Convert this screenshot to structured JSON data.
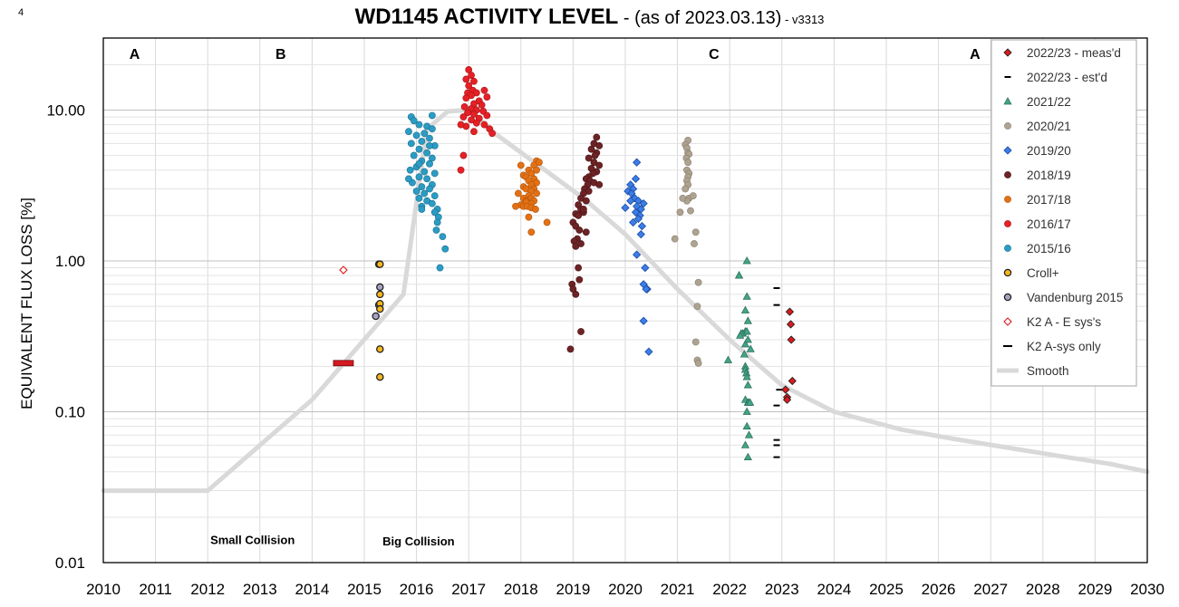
{
  "page_number": "4",
  "title": {
    "main": "WD1145 ACTIVITY LEVEL",
    "dash": " - ",
    "subtitle": "(as of 2023.03.13)",
    "version": " - v3313"
  },
  "chart_data": {
    "type": "scatter",
    "title": "WD1145 ACTIVITY LEVEL - (as of 2023.03.13) - v3313",
    "xlabel": "",
    "ylabel": "EQUIVALENT FLUX LOSS [%]",
    "xlim": [
      2010,
      2030
    ],
    "ylim": [
      0.01,
      30
    ],
    "yscale": "log",
    "x_ticks": [
      "2010",
      "2011",
      "2012",
      "2013",
      "2014",
      "2015",
      "2016",
      "2017",
      "2018",
      "2019",
      "2020",
      "2021",
      "2022",
      "2023",
      "2024",
      "2025",
      "2026",
      "2027",
      "2028",
      "2029",
      "2030"
    ],
    "y_ticks": [
      {
        "value": 0.01,
        "label": "0.01"
      },
      {
        "value": 0.1,
        "label": "0.10"
      },
      {
        "value": 1,
        "label": "1.00"
      },
      {
        "value": 10,
        "label": "10.00"
      }
    ],
    "grid": true,
    "legend_position": "top-right",
    "era_labels": [
      {
        "text": "A",
        "x": 2010.6
      },
      {
        "text": "B",
        "x": 2013.4
      },
      {
        "text": "C",
        "x": 2021.7
      },
      {
        "text": "A",
        "x": 2026.7
      }
    ],
    "annotations": [
      {
        "text": "Small Collision",
        "x": 2012.05,
        "y": 0.0133
      },
      {
        "text": "Big Collision",
        "x": 2015.35,
        "y": 0.013
      }
    ],
    "series": [
      {
        "name": "2022/23 - meas'd",
        "marker": "diamond",
        "color": "#e0191b",
        "edge": "#222222",
        "x": [
          2023.15,
          2023.17,
          2023.18,
          2023.2,
          2023.07,
          2023.1,
          2023.1
        ],
        "y": [
          0.46,
          0.38,
          0.3,
          0.16,
          0.14,
          0.125,
          0.12
        ]
      },
      {
        "name": "2022/23 - est'd",
        "marker": "dash",
        "color": "#000000",
        "x": [
          2022.9,
          2022.9,
          2022.95,
          2022.9,
          2022.9,
          2022.9,
          2022.9
        ],
        "y": [
          0.66,
          0.51,
          0.14,
          0.11,
          0.065,
          0.06,
          0.05
        ]
      },
      {
        "name": "2021/22",
        "marker": "triangle",
        "color": "#43a386",
        "edge": "#2a6b58",
        "x": [
          2022.18,
          2022.33,
          2022.18,
          2022.33,
          2022.3,
          2022.35,
          2022.3,
          2022.33,
          2022.25,
          2022.22,
          2022.3,
          2022.35,
          2022.2,
          2022.28,
          2022.4,
          2022.3,
          2022.3,
          2022.32,
          2022.33,
          2022.35,
          2022.3,
          2022.35,
          2021.97,
          2022.36,
          2022.39,
          2022.33,
          2022.37,
          2022.3,
          2022.35,
          2022.33
        ],
        "y": [
          0.8,
          1.0,
          0.8,
          0.58,
          0.47,
          0.4,
          0.34,
          0.34,
          0.33,
          0.33,
          0.28,
          0.3,
          0.32,
          0.24,
          0.26,
          0.2,
          0.19,
          0.18,
          0.17,
          0.15,
          0.12,
          0.115,
          0.22,
          0.115,
          0.115,
          0.08,
          0.07,
          0.06,
          0.05,
          0.1
        ]
      },
      {
        "name": "2020/21",
        "marker": "circle",
        "color": "#aea391",
        "edge": "#877c69",
        "x": [
          2021.2,
          2021.15,
          2021.18,
          2021.2,
          2021.22,
          2021.17,
          2021.2,
          2021.18,
          2021.22,
          2021.2,
          2021.18,
          2021.2,
          2021.15,
          2021.22,
          2021.18,
          2021.1,
          2021.05,
          2021.3,
          2020.95,
          2021.35,
          2021.25,
          2021.32,
          2021.4,
          2021.38,
          2021.35,
          2021.38,
          2021.4
        ],
        "y": [
          6.3,
          5.9,
          5.6,
          5.2,
          5.1,
          4.8,
          4.5,
          4.0,
          3.8,
          3.6,
          3.4,
          3.2,
          3.0,
          2.6,
          2.5,
          2.6,
          2.1,
          2.7,
          1.4,
          1.55,
          2.15,
          1.3,
          0.72,
          0.5,
          0.29,
          0.22,
          0.21
        ]
      },
      {
        "name": "2019/20",
        "marker": "diamond",
        "color": "#3c7ee8",
        "edge": "#1f4fa8",
        "x": [
          2020.22,
          2020.2,
          2020.1,
          2020.15,
          2020.05,
          2020.12,
          2020.18,
          2020.25,
          2020.1,
          2020.0,
          2020.22,
          2020.2,
          2020.3,
          2020.28,
          2020.25,
          2020.15,
          2020.32,
          2020.35,
          2020.3,
          2020.22,
          2020.38,
          2020.42,
          2020.35,
          2020.35,
          2020.4,
          2020.45
        ],
        "y": [
          4.5,
          3.5,
          3.2,
          3.0,
          2.9,
          2.8,
          2.6,
          2.5,
          2.5,
          2.25,
          2.3,
          2.1,
          2.2,
          2.0,
          1.9,
          1.8,
          1.7,
          2.4,
          1.5,
          1.1,
          0.9,
          0.65,
          0.7,
          0.4,
          0.65,
          0.25
        ]
      },
      {
        "name": "2018/19",
        "marker": "circle",
        "color": "#6d2325",
        "edge": "#4a1416",
        "x": [
          2019.45,
          2019.4,
          2019.5,
          2019.35,
          2019.45,
          2019.42,
          2019.3,
          2019.4,
          2019.5,
          2019.35,
          2019.45,
          2019.38,
          2019.3,
          2019.25,
          2019.32,
          2019.4,
          2019.28,
          2019.22,
          2019.3,
          2019.2,
          2019.15,
          2019.25,
          2019.1,
          2019.15,
          2019.2,
          2019.05,
          2019.1,
          2019.2,
          2019.0,
          2019.05,
          2019.12,
          2019.25,
          2019.5,
          2019.08,
          2019.02,
          2019.15,
          2019.05,
          2019.1,
          2019.12,
          2018.98,
          2019.0,
          2019.05,
          2019.15,
          2018.95
        ],
        "y": [
          6.6,
          6.0,
          5.8,
          5.5,
          5.2,
          5.0,
          4.8,
          4.5,
          4.3,
          4.1,
          3.9,
          3.8,
          3.6,
          3.5,
          3.4,
          3.3,
          3.2,
          3.0,
          2.9,
          2.8,
          2.6,
          2.5,
          2.35,
          2.2,
          2.1,
          2.05,
          2.0,
          2.2,
          1.8,
          1.7,
          1.6,
          1.55,
          3.2,
          1.4,
          1.35,
          1.3,
          1.25,
          0.9,
          0.75,
          0.7,
          0.65,
          0.6,
          0.34,
          0.26
        ]
      },
      {
        "name": "2017/18",
        "marker": "circle",
        "color": "#e37114",
        "edge": "#b2540c",
        "x": [
          2018.3,
          2018.25,
          2018.35,
          2018.0,
          2018.15,
          2018.3,
          2018.2,
          2018.05,
          2018.1,
          2018.25,
          2018.15,
          2018.3,
          2018.2,
          2018.05,
          2018.25,
          2018.1,
          2018.2,
          2018.3,
          2017.95,
          2018.15,
          2018.05,
          2018.2,
          2018.1,
          2018.25,
          2018.1,
          2018.2,
          2018.0,
          2018.05,
          2018.12,
          2018.2,
          2018.28,
          2017.9,
          2018.15,
          2018.5,
          2018.2
        ],
        "y": [
          4.6,
          4.3,
          4.5,
          4.3,
          4.0,
          4.0,
          3.8,
          3.7,
          3.6,
          3.5,
          3.4,
          3.3,
          3.2,
          3.1,
          3.0,
          3.0,
          2.9,
          2.8,
          2.8,
          2.7,
          2.6,
          2.6,
          2.5,
          2.5,
          2.45,
          2.4,
          2.35,
          2.3,
          2.3,
          2.25,
          2.2,
          2.3,
          1.95,
          1.8,
          1.55
        ]
      },
      {
        "name": "2016/17",
        "marker": "circle",
        "color": "#e52126",
        "edge": "#a8141a",
        "x": [
          2017.0,
          2017.05,
          2016.95,
          2017.1,
          2017.0,
          2017.08,
          2016.98,
          2017.3,
          2017.15,
          2017.05,
          2016.95,
          2017.35,
          2017.2,
          2017.1,
          2017.25,
          2016.92,
          2017.05,
          2017.15,
          2017.28,
          2016.98,
          2017.1,
          2017.35,
          2016.9,
          2017.2,
          2017.05,
          2017.15,
          2017.3,
          2016.95,
          2017.4,
          2016.85,
          2017.1,
          2016.9,
          2017.45,
          2016.85
        ],
        "y": [
          18.5,
          17.0,
          16.0,
          15.5,
          14.5,
          13.5,
          13.0,
          13.5,
          13.0,
          12.5,
          12.0,
          12.2,
          11.5,
          11.0,
          10.8,
          10.5,
          10.2,
          10.0,
          9.8,
          9.6,
          9.4,
          9.2,
          9.0,
          8.8,
          8.6,
          8.2,
          8.0,
          7.8,
          7.5,
          8.0,
          7.2,
          5.0,
          7.0,
          4.0
        ]
      },
      {
        "name": "2015/16",
        "marker": "circle",
        "color": "#2b9cc4",
        "edge": "#1a6f8e",
        "x": [
          2015.9,
          2016.3,
          2015.95,
          2016.05,
          2016.2,
          2016.3,
          2015.85,
          2016.15,
          2016.0,
          2016.25,
          2016.1,
          2015.9,
          2016.35,
          2016.05,
          2016.2,
          2015.95,
          2016.3,
          2016.1,
          2016.25,
          2016.0,
          2015.88,
          2016.15,
          2016.35,
          2016.05,
          2016.2,
          2015.92,
          2016.3,
          2016.1,
          2016.25,
          2016.0,
          2016.15,
          2016.35,
          2016.05,
          2016.2,
          2016.3,
          2016.1,
          2016.4,
          2016.35,
          2016.42,
          2016.4,
          2016.38,
          2016.5,
          2016.55,
          2016.45,
          2015.85,
          2016.1,
          2016.25,
          2016.05
        ],
        "y": [
          9.0,
          9.2,
          8.5,
          8.0,
          7.8,
          7.5,
          7.2,
          7.0,
          6.8,
          6.5,
          6.2,
          6.0,
          5.8,
          5.5,
          5.2,
          5.0,
          4.8,
          4.6,
          4.4,
          4.2,
          4.0,
          3.9,
          3.8,
          3.6,
          3.5,
          3.3,
          3.2,
          3.1,
          3.0,
          2.9,
          2.8,
          2.7,
          2.6,
          2.5,
          2.4,
          2.3,
          2.2,
          2.1,
          1.95,
          1.8,
          1.6,
          1.45,
          1.2,
          0.9,
          3.5,
          2.2,
          5.8,
          4.4
        ]
      },
      {
        "name": "Croll+",
        "marker": "circle",
        "color": "#f5b71e",
        "edge": "#222222",
        "x": [
          2015.3,
          2015.3,
          2015.3,
          2015.3,
          2015.3,
          2015.3
        ],
        "y": [
          0.95,
          0.6,
          0.52,
          0.48,
          0.26,
          0.17
        ]
      },
      {
        "name": "Vandenburg 2015",
        "marker": "circle",
        "color": "#a8a2c4",
        "edge": "#222222",
        "x": [
          2015.28,
          2015.3,
          2015.28,
          2015.22
        ],
        "y": [
          0.95,
          0.67,
          0.51,
          0.43
        ]
      },
      {
        "name": "K2 A - E sys's",
        "marker": "diamond_open",
        "color": "#e0191b",
        "x": [
          2014.6
        ],
        "y": [
          0.87
        ]
      },
      {
        "name": "K2 A-sys only",
        "marker": "bar",
        "color": "#d41920",
        "edge": "#6b0b0e",
        "x": [
          2014.6
        ],
        "y": [
          0.21
        ]
      },
      {
        "name": "Smooth",
        "marker": "line",
        "color": "#d9d9d9",
        "x": [
          2010,
          2012,
          2014,
          2015.75,
          2016.2,
          2016.6,
          2017.0,
          2017.5,
          2019.2,
          2020.0,
          2021.0,
          2022.0,
          2023.0,
          2024.0,
          2025.3,
          2026.3,
          2027.3,
          2028.3,
          2029.3,
          2030
        ],
        "y": [
          0.03,
          0.03,
          0.12,
          0.6,
          7.5,
          9.8,
          10.0,
          7.0,
          2.6,
          1.5,
          0.65,
          0.3,
          0.15,
          0.1,
          0.076,
          0.066,
          0.058,
          0.051,
          0.045,
          0.04
        ]
      }
    ]
  }
}
